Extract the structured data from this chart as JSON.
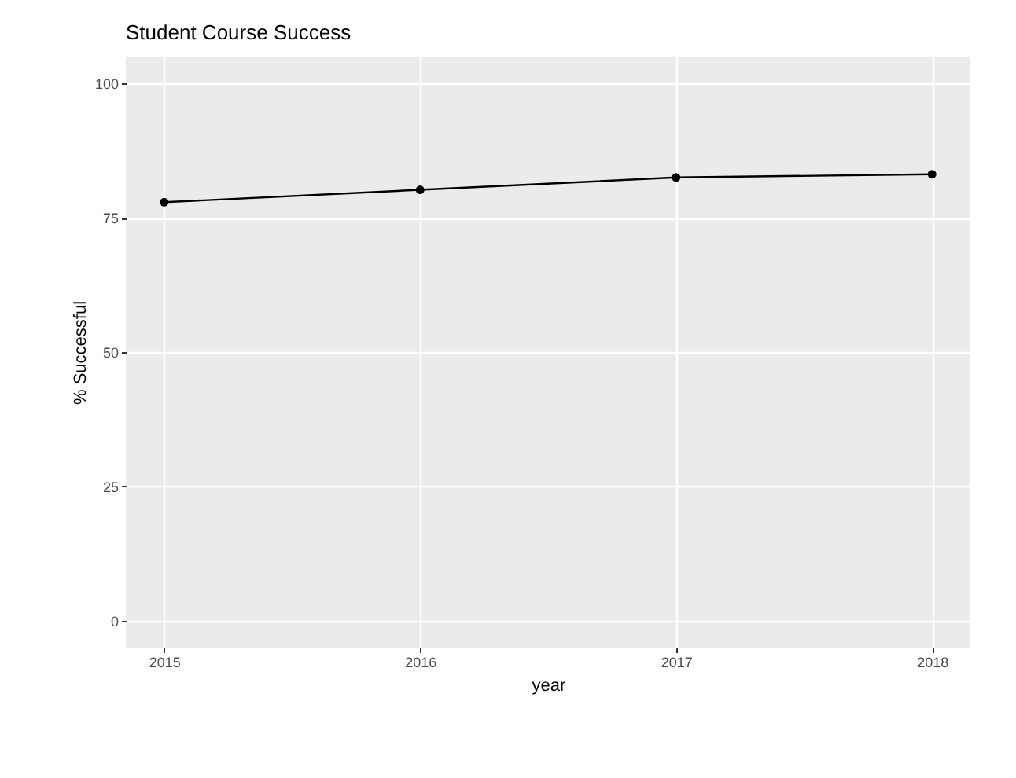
{
  "chart_data": {
    "type": "line",
    "title": "Student Course Success",
    "xlabel": "year",
    "ylabel": "% Successful",
    "x": [
      2015,
      2016,
      2017,
      2018
    ],
    "series": [
      {
        "color": "#000000",
        "values": [
          77.9,
          80.2,
          82.5,
          83.1
        ]
      }
    ],
    "xlim": [
      2014.85,
      2018.15
    ],
    "xticks": [
      2015,
      2016,
      2017,
      2018
    ],
    "ylim": [
      -5,
      105
    ],
    "yticks": [
      0,
      25,
      50,
      75,
      100
    ],
    "grid": true,
    "marker": "circle",
    "line_style": "solid"
  }
}
